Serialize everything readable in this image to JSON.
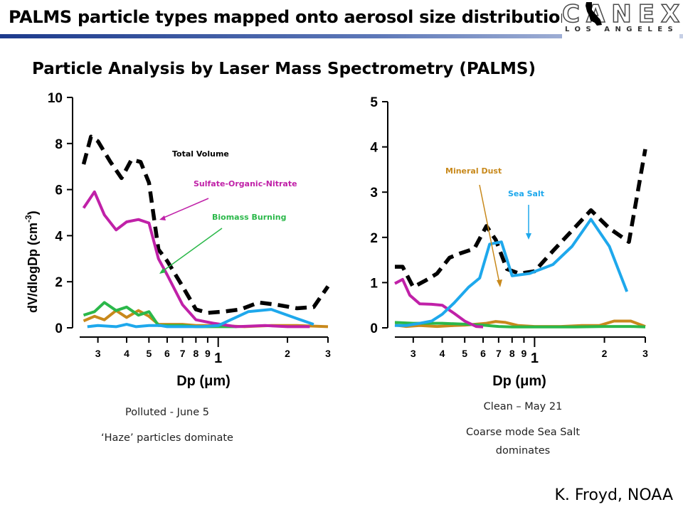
{
  "slide": {
    "title": "PALMS particle types mapped onto aerosol size distribution",
    "subtitle": "Particle Analysis by Laser Mass Spectrometry (PALMS)",
    "credit": "K. Froyd, NOAA",
    "logo": {
      "main": "CANEX",
      "sub": "LOS ANGELES"
    }
  },
  "captions": {
    "left_line1": "Polluted - June 5",
    "left_line2": "‘Haze’ particles dominate",
    "right_line1": "Clean – May 21",
    "right_line2a": "Coarse mode Sea Salt",
    "right_line2b": "dominates"
  },
  "colors": {
    "total": "#000000",
    "sulfate": "#c021a8",
    "biomass": "#2bb84a",
    "seasalt": "#1ea8ec",
    "dust": "#c8891c",
    "title_bar": "#1c3a8c"
  },
  "chart_data": [
    {
      "type": "line",
      "ylabel": "dV/dlogDp (cm-3)",
      "xlabel": "Dp (μm)",
      "x_scale": "log",
      "xlim": [
        0.25,
        3.0
      ],
      "ylim": [
        0,
        10
      ],
      "yticks": [
        0,
        2,
        4,
        6,
        8,
        10
      ],
      "xticks": [
        {
          "v": 0.3,
          "label": "3",
          "major": false
        },
        {
          "v": 0.4,
          "label": "4",
          "major": false
        },
        {
          "v": 0.5,
          "label": "5",
          "major": false
        },
        {
          "v": 0.6,
          "label": "6",
          "major": false
        },
        {
          "v": 0.7,
          "label": "7",
          "major": false
        },
        {
          "v": 0.8,
          "label": "8",
          "major": false
        },
        {
          "v": 0.9,
          "label": "9",
          "major": false
        },
        {
          "v": 1.0,
          "label": "1",
          "major": true
        },
        {
          "v": 2.0,
          "label": "2",
          "major": false
        },
        {
          "v": 3.0,
          "label": "3",
          "major": false
        }
      ],
      "annotations": {
        "total": "Total Volume",
        "sulfate": "Sulfate-Organic-Nitrate",
        "biomass": "Biomass Burning"
      },
      "series": [
        {
          "key": "total",
          "dashed": true,
          "x": [
            0.26,
            0.28,
            0.3,
            0.34,
            0.38,
            0.42,
            0.46,
            0.5,
            0.55,
            0.6,
            0.7,
            0.8,
            0.9,
            1.05,
            1.25,
            1.5,
            1.8,
            2.2,
            2.6,
            3.0
          ],
          "y": [
            7.1,
            8.3,
            8.1,
            7.2,
            6.5,
            7.3,
            7.2,
            6.3,
            3.4,
            2.9,
            1.8,
            0.8,
            0.65,
            0.7,
            0.8,
            1.1,
            1.0,
            0.85,
            0.9,
            1.8
          ]
        },
        {
          "key": "sulfate",
          "dashed": false,
          "x": [
            0.26,
            0.29,
            0.32,
            0.36,
            0.4,
            0.45,
            0.5,
            0.55,
            0.6,
            0.7,
            0.8,
            0.95,
            1.2,
            1.6,
            2.0,
            2.5
          ],
          "y": [
            5.2,
            5.9,
            4.9,
            4.25,
            4.6,
            4.7,
            4.55,
            3.0,
            2.3,
            1.0,
            0.35,
            0.2,
            0.05,
            0.1,
            0.05,
            0.05
          ]
        },
        {
          "key": "biomass",
          "dashed": false,
          "x": [
            0.26,
            0.29,
            0.32,
            0.36,
            0.4,
            0.45,
            0.5,
            0.55,
            0.6,
            0.7,
            0.8,
            1.0,
            1.2
          ],
          "y": [
            0.55,
            0.7,
            1.1,
            0.75,
            0.9,
            0.55,
            0.7,
            0.1,
            0.1,
            0.1,
            0.05,
            0.05,
            0.05
          ]
        },
        {
          "key": "dust",
          "dashed": false,
          "x": [
            0.26,
            0.29,
            0.32,
            0.36,
            0.4,
            0.45,
            0.5,
            0.55,
            0.6,
            0.7,
            0.8,
            1.0,
            1.3,
            1.7,
            2.2,
            3.0
          ],
          "y": [
            0.3,
            0.5,
            0.35,
            0.75,
            0.45,
            0.75,
            0.5,
            0.15,
            0.15,
            0.15,
            0.1,
            0.1,
            0.05,
            0.1,
            0.1,
            0.05
          ]
        },
        {
          "key": "seasalt",
          "dashed": false,
          "x": [
            0.27,
            0.3,
            0.36,
            0.4,
            0.44,
            0.5,
            0.56,
            0.6,
            0.7,
            0.85,
            1.0,
            1.35,
            1.7,
            2.2,
            2.6
          ],
          "y": [
            0.05,
            0.1,
            0.05,
            0.15,
            0.05,
            0.1,
            0.1,
            0.05,
            0.05,
            0.05,
            0.1,
            0.7,
            0.8,
            0.4,
            0.15
          ]
        }
      ]
    },
    {
      "type": "line",
      "ylabel": "",
      "xlabel": "Dp (μm)",
      "x_scale": "log",
      "xlim": [
        0.25,
        3.0
      ],
      "ylim": [
        0,
        5
      ],
      "yticks": [
        0,
        1,
        2,
        3,
        4,
        5
      ],
      "xticks": [
        {
          "v": 0.3,
          "label": "3",
          "major": false
        },
        {
          "v": 0.4,
          "label": "4",
          "major": false
        },
        {
          "v": 0.5,
          "label": "5",
          "major": false
        },
        {
          "v": 0.6,
          "label": "6",
          "major": false
        },
        {
          "v": 0.7,
          "label": "7",
          "major": false
        },
        {
          "v": 0.8,
          "label": "8",
          "major": false
        },
        {
          "v": 0.9,
          "label": "9",
          "major": false
        },
        {
          "v": 1.0,
          "label": "1",
          "major": true
        },
        {
          "v": 2.0,
          "label": "2",
          "major": false
        },
        {
          "v": 3.0,
          "label": "3",
          "major": false
        }
      ],
      "annotations": {
        "dust": "Mineral Dust",
        "seasalt": "Sea Salt"
      },
      "series": [
        {
          "key": "total",
          "dashed": true,
          "x": [
            0.25,
            0.27,
            0.3,
            0.34,
            0.38,
            0.43,
            0.48,
            0.55,
            0.62,
            0.68,
            0.76,
            0.86,
            1.0,
            1.2,
            1.45,
            1.75,
            2.1,
            2.55,
            3.0
          ],
          "y": [
            1.35,
            1.35,
            0.9,
            1.05,
            1.2,
            1.55,
            1.65,
            1.75,
            2.25,
            1.95,
            1.3,
            1.2,
            1.25,
            1.7,
            2.15,
            2.6,
            2.2,
            1.9,
            3.95
          ]
        },
        {
          "key": "sulfate",
          "dashed": false,
          "x": [
            0.25,
            0.27,
            0.29,
            0.32,
            0.36,
            0.4,
            0.45,
            0.5,
            0.56,
            0.6
          ],
          "y": [
            0.98,
            1.07,
            0.72,
            0.53,
            0.52,
            0.5,
            0.32,
            0.15,
            0.03,
            0.02
          ]
        },
        {
          "key": "seasalt",
          "dashed": false,
          "x": [
            0.25,
            0.28,
            0.32,
            0.36,
            0.4,
            0.45,
            0.52,
            0.58,
            0.64,
            0.72,
            0.8,
            0.95,
            1.2,
            1.45,
            1.75,
            2.1,
            2.5
          ],
          "y": [
            0.05,
            0.05,
            0.1,
            0.15,
            0.3,
            0.55,
            0.9,
            1.1,
            1.85,
            1.9,
            1.15,
            1.2,
            1.4,
            1.8,
            2.4,
            1.8,
            0.8
          ]
        },
        {
          "key": "biomass",
          "dashed": false,
          "x": [
            0.25,
            0.3,
            0.4,
            0.5,
            0.6,
            0.7,
            0.8,
            1.5,
            2.0,
            2.6,
            3.0
          ],
          "y": [
            0.12,
            0.1,
            0.1,
            0.08,
            0.06,
            0.03,
            0.02,
            0.02,
            0.03,
            0.03,
            0.02
          ]
        },
        {
          "key": "dust",
          "dashed": false,
          "x": [
            0.25,
            0.28,
            0.32,
            0.38,
            0.45,
            0.5,
            0.56,
            0.62,
            0.68,
            0.75,
            0.85,
            1.0,
            1.3,
            1.6,
            1.9,
            2.2,
            2.6,
            3.0
          ],
          "y": [
            0.06,
            0.03,
            0.05,
            0.03,
            0.05,
            0.06,
            0.08,
            0.1,
            0.14,
            0.12,
            0.05,
            0.03,
            0.03,
            0.05,
            0.05,
            0.15,
            0.15,
            0.03
          ]
        }
      ]
    }
  ]
}
